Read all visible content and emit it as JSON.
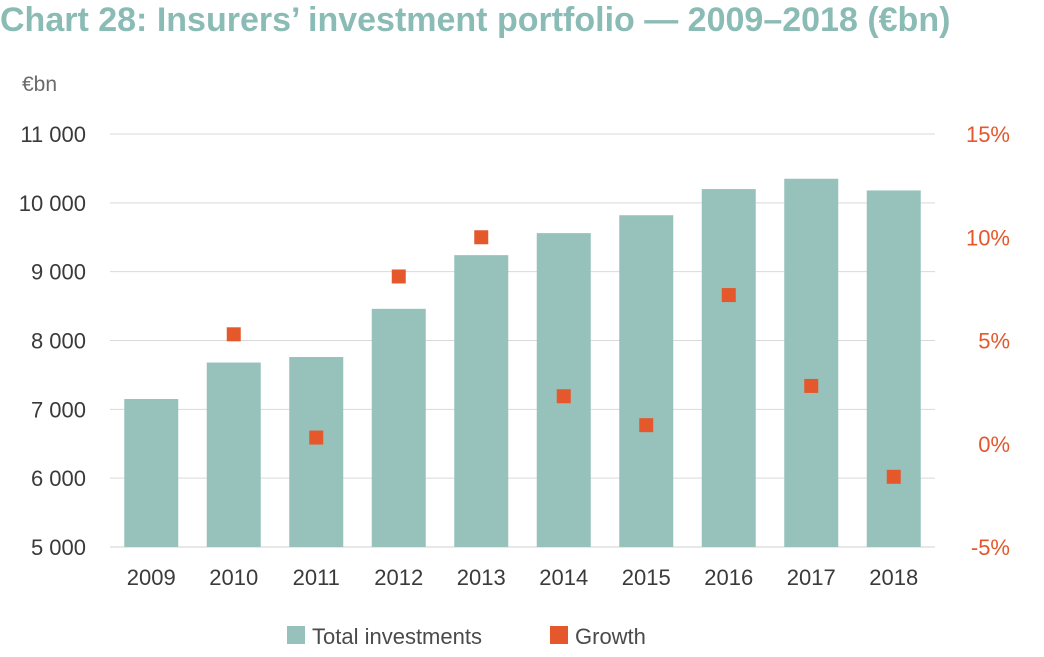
{
  "title": "Chart 28: Insurers’ investment portfolio — 2009–2018 (€bn)",
  "chart_data": {
    "type": "bar",
    "title": "Chart 28: Insurers’ investment portfolio — 2009–2018 (€bn)",
    "y_unit_label": "€bn",
    "categories": [
      "2009",
      "2010",
      "2011",
      "2012",
      "2013",
      "2014",
      "2015",
      "2016",
      "2017",
      "2018"
    ],
    "series": [
      {
        "name": "Total investments",
        "type": "bar",
        "axis": "left",
        "color": "#97c2bc",
        "values": [
          7150,
          7680,
          7760,
          8460,
          9240,
          9560,
          9820,
          10200,
          10350,
          10180
        ]
      },
      {
        "name": "Growth",
        "type": "scatter",
        "axis": "right",
        "color": "#e4582b",
        "values": [
          null,
          5.3,
          0.3,
          8.1,
          10.0,
          2.3,
          0.9,
          7.2,
          2.8,
          -1.6
        ]
      }
    ],
    "y_left": {
      "min": 5000,
      "max": 11000,
      "ticks": [
        "5 000",
        "6 000",
        "7 000",
        "8 000",
        "9 000",
        "10 000",
        "11 000"
      ]
    },
    "y_right": {
      "min": -5,
      "max": 15,
      "ticks": [
        "-5%",
        "0%",
        "5%",
        "10%",
        "15%"
      ]
    },
    "grid": true,
    "legend": "bottom"
  }
}
